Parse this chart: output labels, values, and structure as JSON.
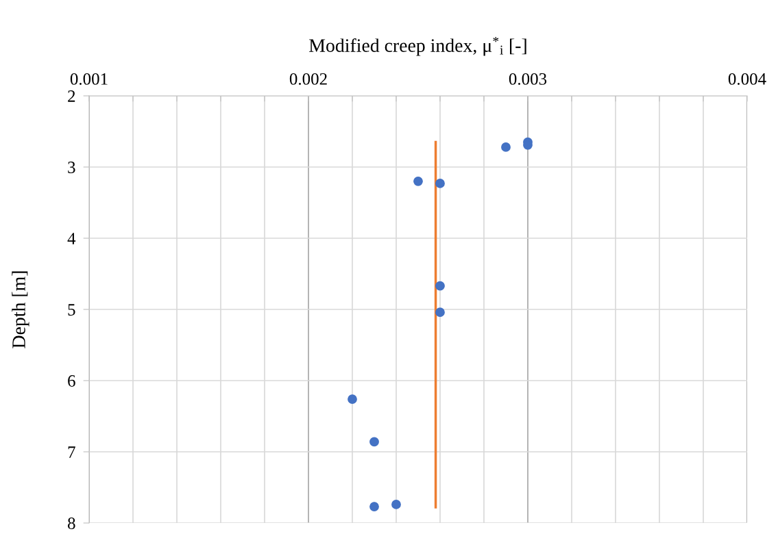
{
  "chart_data": {
    "type": "scatter",
    "xlabel": "Modified creep index, μ$^{*}$$_{i}$ [-]",
    "ylabel": "Depth [m]",
    "series": [
      {
        "color": "#4472c4",
        "marker": "circle",
        "x": [
          0.003,
          0.003,
          0.0029,
          0.0025,
          0.0026,
          0.0026,
          0.0026,
          0.0022,
          0.0023,
          0.0023,
          0.0024
        ],
        "values": [
          2.65,
          2.69,
          2.72,
          3.2,
          3.23,
          4.67,
          5.04,
          6.26,
          6.86,
          7.77,
          7.74
        ]
      },
      {
        "type": "line",
        "color": "#ed7d31",
        "marker": "none",
        "line_style": "solid",
        "x": [
          0.00258,
          0.00258
        ],
        "values": [
          2.65,
          7.78
        ]
      }
    ],
    "xlim": [
      0.001,
      0.004
    ],
    "xticks": [
      0.001,
      {
        "value": 0.0012,
        "label": null
      },
      {
        "value": 0.0014,
        "label": null
      },
      {
        "value": 0.0016,
        "label": null
      },
      {
        "value": 0.0018,
        "label": null
      },
      0.002,
      {
        "value": 0.0022,
        "label": null
      },
      {
        "value": 0.0024,
        "label": null
      },
      {
        "value": 0.0026,
        "label": null
      },
      {
        "value": 0.0028,
        "label": null
      },
      0.003,
      {
        "value": 0.0032,
        "label": null
      },
      {
        "value": 0.0034,
        "label": null
      },
      {
        "value": 0.0036,
        "label": null
      },
      {
        "value": 0.0038,
        "label": null
      },
      0.004
    ],
    "ylim": [
      8,
      2
    ],
    "yticks": [
      2,
      3,
      4,
      5,
      6,
      7,
      8
    ],
    "grid": true,
    "legend": false
  }
}
